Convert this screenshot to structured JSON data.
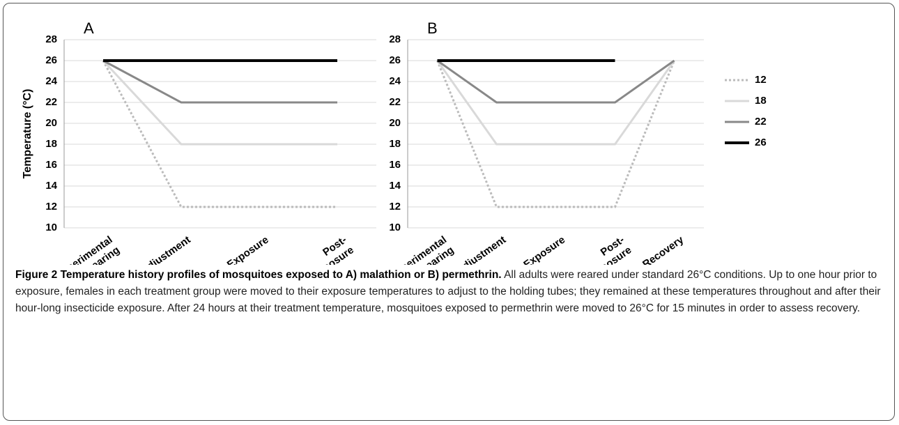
{
  "chart_data": [
    {
      "type": "line",
      "title": "A",
      "y_label": "Temperature (°C)",
      "categories": [
        "Pre-experimental\nrearing",
        "Adjustment",
        "Exposure",
        "Post-\nexposure"
      ],
      "ylim": [
        10,
        28
      ],
      "yticks": [
        10,
        12,
        14,
        16,
        18,
        20,
        22,
        24,
        26,
        28
      ],
      "grid": true,
      "series": [
        {
          "name": "12",
          "color": "#bbbbbb",
          "style": "dotted",
          "values": [
            26,
            12,
            12,
            12
          ]
        },
        {
          "name": "18",
          "color": "#d9d9d9",
          "style": "solid",
          "values": [
            26,
            18,
            18,
            18
          ]
        },
        {
          "name": "22",
          "color": "#888888",
          "style": "solid",
          "values": [
            26,
            22,
            22,
            22
          ]
        },
        {
          "name": "26",
          "color": "#000000",
          "style": "solid",
          "values": [
            26,
            26,
            26,
            26
          ]
        }
      ]
    },
    {
      "type": "line",
      "title": "B",
      "legend": "right",
      "categories": [
        "Pre-experimental\nrearing",
        "Adjustment",
        "Exposure",
        "Post-\nexposure",
        "Recovery"
      ],
      "ylim": [
        10,
        28
      ],
      "yticks": [
        10,
        12,
        14,
        16,
        18,
        20,
        22,
        24,
        26,
        28
      ],
      "grid": true,
      "series": [
        {
          "name": "12",
          "color": "#bbbbbb",
          "style": "dotted",
          "values": [
            26,
            12,
            12,
            12,
            26
          ]
        },
        {
          "name": "18",
          "color": "#d9d9d9",
          "style": "solid",
          "values": [
            26,
            18,
            18,
            18,
            26
          ]
        },
        {
          "name": "22",
          "color": "#888888",
          "style": "solid",
          "values": [
            26,
            22,
            22,
            22,
            26
          ]
        },
        {
          "name": "26",
          "color": "#000000",
          "style": "solid",
          "values": [
            26,
            26,
            26,
            26,
            null
          ]
        }
      ]
    }
  ],
  "caption": {
    "title": "Figure 2 Temperature history profiles of mosquitoes exposed to A) malathion or B) permethrin.",
    "text": "All adults were reared under standard 26°C conditions. Up to one hour prior to exposure, females in each treatment group were moved to their exposure temperatures to adjust to the holding tubes; they remained at these temperatures throughout and after their hour-long insecticide exposure. After 24 hours at their treatment temperature, mosquitoes exposed to permethrin were moved to 26°C for 15 minutes in order to assess recovery."
  }
}
